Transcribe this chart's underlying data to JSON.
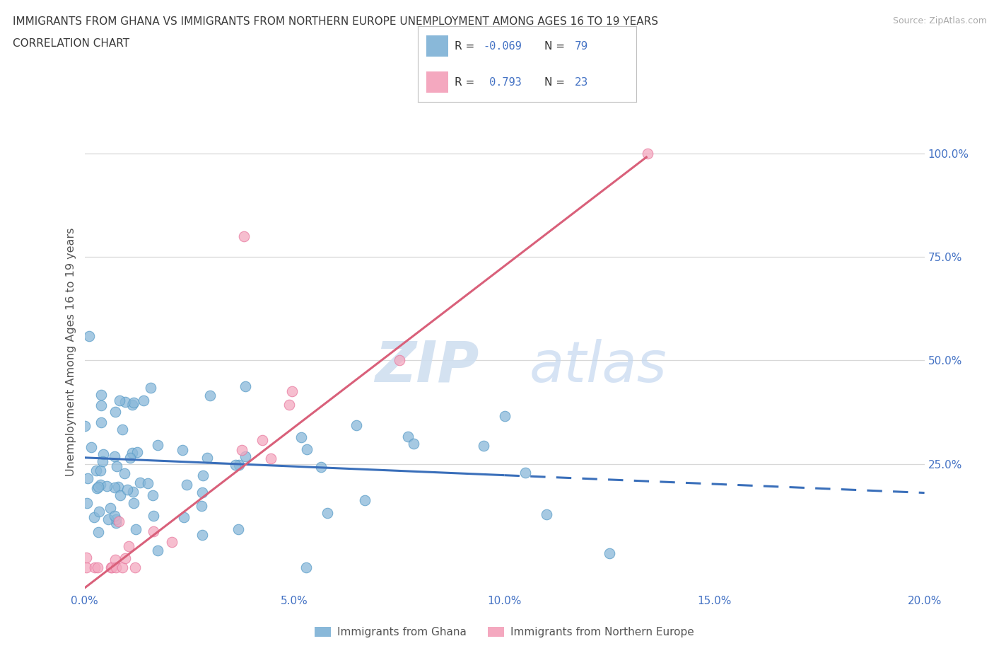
{
  "title_line1": "IMMIGRANTS FROM GHANA VS IMMIGRANTS FROM NORTHERN EUROPE UNEMPLOYMENT AMONG AGES 16 TO 19 YEARS",
  "title_line2": "CORRELATION CHART",
  "source": "Source: ZipAtlas.com",
  "ylabel": "Unemployment Among Ages 16 to 19 years",
  "xlim": [
    0.0,
    0.2
  ],
  "ylim": [
    -0.06,
    1.1
  ],
  "xticks": [
    0.0,
    0.05,
    0.1,
    0.15,
    0.2
  ],
  "xtick_labels": [
    "0.0%",
    "5.0%",
    "10.0%",
    "15.0%",
    "20.0%"
  ],
  "yticks_right": [
    0.25,
    0.5,
    0.75,
    1.0
  ],
  "ytick_labels_right": [
    "25.0%",
    "50.0%",
    "75.0%",
    "100.0%"
  ],
  "ghana_color": "#89b8d9",
  "ghana_edge_color": "#5a9dc8",
  "northern_color": "#f4a8bf",
  "northern_edge_color": "#e87aa0",
  "ghana_trend_color": "#3a6fba",
  "northern_trend_color": "#d9607a",
  "ghana_R": -0.069,
  "ghana_N": 79,
  "northern_R": 0.793,
  "northern_N": 23,
  "watermark_zip": "ZIP",
  "watermark_atlas": "atlas",
  "background_color": "#ffffff",
  "grid_color": "#d8d8d8",
  "title_color": "#3a3a3a",
  "axis_label_color": "#555555",
  "tick_color": "#4472c4",
  "legend_color": "#4472c4",
  "source_color": "#aaaaaa"
}
